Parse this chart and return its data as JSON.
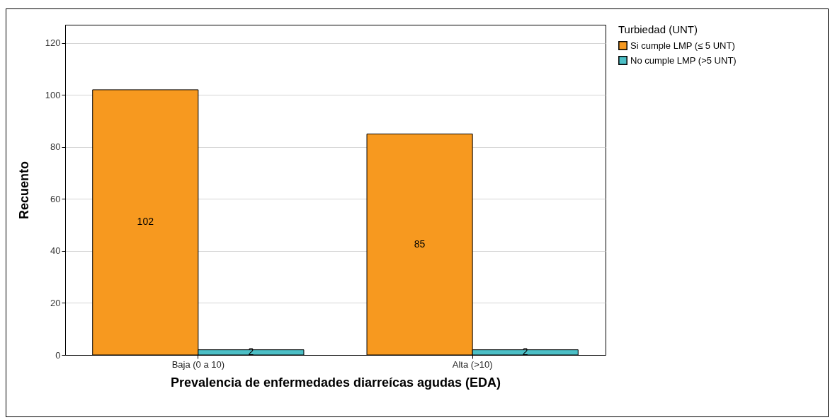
{
  "chart_data": {
    "type": "bar",
    "xlabel": "Prevalencia de enfermedades diarreícas agudas (EDA)",
    "ylabel": "Recuento",
    "legend_title": "Turbiedad (UNT)",
    "categories": [
      "Baja (0 a 10)",
      "Alta (>10)"
    ],
    "series": [
      {
        "name": "Si cumple LMP (≤ 5 UNT)",
        "color": "#f7991f",
        "values": [
          102,
          85
        ]
      },
      {
        "name": "No cumple LMP (>5 UNT)",
        "color": "#4cbfc6",
        "values": [
          2,
          2
        ]
      }
    ],
    "ylim": [
      0,
      127
    ],
    "yticks": [
      0,
      20,
      40,
      60,
      80,
      100,
      120
    ],
    "grid": "y",
    "legend": "top right",
    "data_labels": true
  }
}
